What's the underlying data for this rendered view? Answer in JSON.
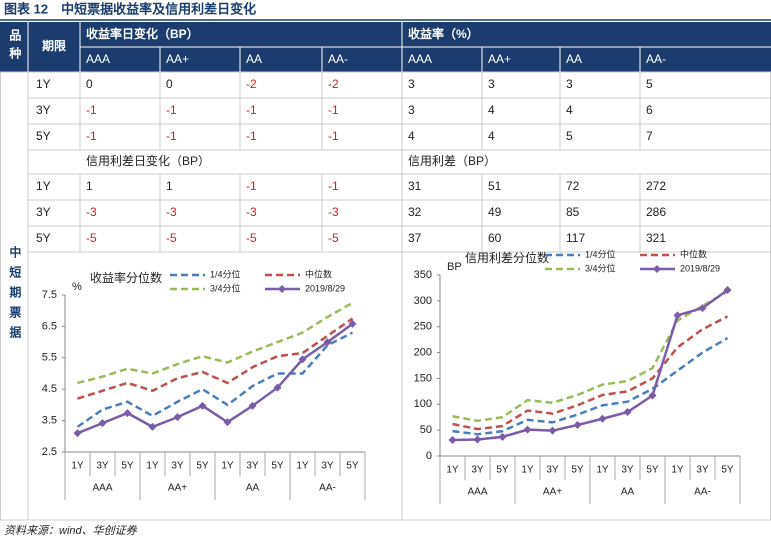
{
  "title": "图表 12　中短票据收益率及信用利差日变化",
  "table": {
    "header": [
      "品种",
      "期限",
      "收益率日变化（BP）",
      "收益率（%）"
    ],
    "subheaders": [
      "AAA",
      "AA+",
      "AA",
      "AA-",
      "AAA",
      "AA+",
      "AA",
      "AA-"
    ],
    "category": "中短期票据",
    "section_titles": [
      "信用利差日变化（BP）",
      "信用利差（BP）"
    ],
    "sections": [
      {
        "rows": [
          {
            "term": "1Y",
            "values": [
              0,
              0,
              -2,
              -2,
              3,
              3,
              3,
              5
            ]
          },
          {
            "term": "3Y",
            "values": [
              -1,
              -1,
              -1,
              -1,
              3,
              4,
              4,
              6
            ]
          },
          {
            "term": "5Y",
            "values": [
              -1,
              -1,
              -1,
              -1,
              4,
              4,
              5,
              7
            ]
          }
        ]
      },
      {
        "rows": [
          {
            "term": "1Y",
            "values": [
              1,
              1,
              -1,
              -1,
              31,
              51,
              72,
              272
            ]
          },
          {
            "term": "3Y",
            "values": [
              -3,
              -3,
              -3,
              -3,
              32,
              49,
              85,
              286
            ]
          },
          {
            "term": "5Y",
            "values": [
              -5,
              -5,
              -5,
              -5,
              37,
              60,
              117,
              321
            ]
          }
        ]
      }
    ]
  },
  "chart_data": [
    {
      "type": "line",
      "title": "收益率分位数",
      "y_label": "%",
      "categories": [
        "1Y",
        "3Y",
        "5Y",
        "1Y",
        "3Y",
        "5Y",
        "1Y",
        "3Y",
        "5Y",
        "1Y",
        "3Y",
        "5Y"
      ],
      "groups": [
        "AAA",
        "AA+",
        "AA",
        "AA-"
      ],
      "ylim": [
        2.5,
        7.5
      ],
      "yticks": [
        2.5,
        3.5,
        4.5,
        5.5,
        6.5,
        7.5
      ],
      "series": [
        {
          "name": "1/4分位",
          "color": "#4a7ebb",
          "dashed": true,
          "values": [
            3.3,
            3.85,
            4.1,
            3.65,
            4.1,
            4.5,
            4.0,
            4.6,
            5.0,
            5.0,
            5.9,
            6.3
          ]
        },
        {
          "name": "中位数",
          "color": "#c0504d",
          "dashed": true,
          "values": [
            4.2,
            4.45,
            4.7,
            4.45,
            4.85,
            5.05,
            4.7,
            5.2,
            5.55,
            5.65,
            6.2,
            6.75
          ]
        },
        {
          "name": "3/4分位",
          "color": "#9bbb59",
          "dashed": true,
          "values": [
            4.7,
            4.9,
            5.15,
            5.0,
            5.3,
            5.55,
            5.35,
            5.7,
            6.0,
            6.3,
            6.8,
            7.25
          ]
        },
        {
          "name": "2019/8/29",
          "color": "#7a5ca8",
          "dashed": false,
          "values": [
            3.1,
            3.42,
            3.74,
            3.3,
            3.61,
            3.97,
            3.45,
            3.97,
            4.55,
            5.45,
            6.0,
            6.58
          ]
        }
      ]
    },
    {
      "type": "line",
      "title": "信用利差分位数",
      "y_label": "BP",
      "categories": [
        "1Y",
        "3Y",
        "5Y",
        "1Y",
        "3Y",
        "5Y",
        "1Y",
        "3Y",
        "5Y",
        "1Y",
        "3Y",
        "5Y"
      ],
      "groups": [
        "AAA",
        "AA+",
        "AA",
        "AA-"
      ],
      "ylim": [
        0,
        350
      ],
      "yticks": [
        0,
        50,
        100,
        150,
        200,
        250,
        300,
        350
      ],
      "series": [
        {
          "name": "1/4分位",
          "color": "#4a7ebb",
          "dashed": true,
          "values": [
            48,
            42,
            48,
            70,
            65,
            80,
            98,
            105,
            130,
            165,
            200,
            228
          ]
        },
        {
          "name": "中位数",
          "color": "#c0504d",
          "dashed": true,
          "values": [
            62,
            52,
            58,
            88,
            82,
            98,
            118,
            125,
            150,
            210,
            245,
            270
          ]
        },
        {
          "name": "3/4分位",
          "color": "#9bbb59",
          "dashed": true,
          "values": [
            77,
            68,
            75,
            108,
            103,
            118,
            138,
            145,
            170,
            262,
            290,
            318
          ]
        },
        {
          "name": "2019/8/29",
          "color": "#7a5ca8",
          "dashed": false,
          "values": [
            31,
            32,
            37,
            51,
            49,
            60,
            72,
            85,
            117,
            272,
            286,
            321
          ]
        }
      ]
    }
  ],
  "source": "资料来源：wind、华创证券"
}
